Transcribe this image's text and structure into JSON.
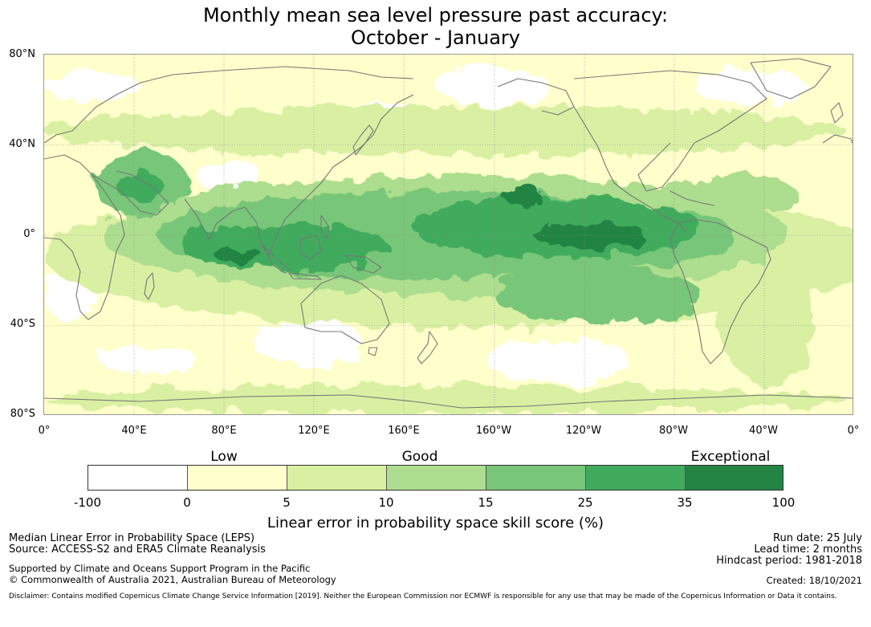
{
  "title": {
    "line1": "Monthly mean sea level pressure past accuracy:",
    "line2": "October - January"
  },
  "map": {
    "lat_labels": [
      "80°N",
      "40°N",
      "0°",
      "40°S",
      "80°S"
    ],
    "lon_labels": [
      "0°",
      "40°E",
      "80°E",
      "120°E",
      "160°E",
      "160°W",
      "120°W",
      "80°W",
      "40°W",
      "0°"
    ],
    "colors": {
      "ocean_none": "#ffffff",
      "low": "#ffffcc",
      "fair": "#d9f0a3",
      "good": "#addd8e",
      "very_good": "#78c679",
      "high": "#41ab5d",
      "exceptional": "#238443",
      "coastline": "#777777"
    }
  },
  "legend": {
    "categories": [
      "Low",
      "Good",
      "Exceptional"
    ],
    "ticks": [
      "-100",
      "0",
      "5",
      "10",
      "15",
      "25",
      "35",
      "100"
    ],
    "colors": [
      "#ffffff",
      "#ffffcc",
      "#d9f0a3",
      "#addd8e",
      "#78c679",
      "#41ab5d",
      "#238443"
    ],
    "label": "Linear error in probability space skill score (%)"
  },
  "footer": {
    "left1": "Median Linear Error in Probability Space (LEPS)",
    "left2": "Source: ACCESS-S2 and ERA5 Climate Reanalysis",
    "left3": "Supported by Climate and Oceans Support Program in the Pacific",
    "left4": "© Commonwealth of Australia 2021, Australian Bureau of Meteorology",
    "run_date": "Run date: 25 July",
    "lead_time": "Lead time: 2 months",
    "hindcast": "Hindcast period: 1981-2018",
    "created": "Created: 18/10/2021",
    "disclaimer": "Disclaimer: Contains modified Copernicus Climate Change Service Information [2019]. Neither the European Commission nor ECMWF is responsible for any use that may be made of the Copernicus Information or Data it contains."
  }
}
